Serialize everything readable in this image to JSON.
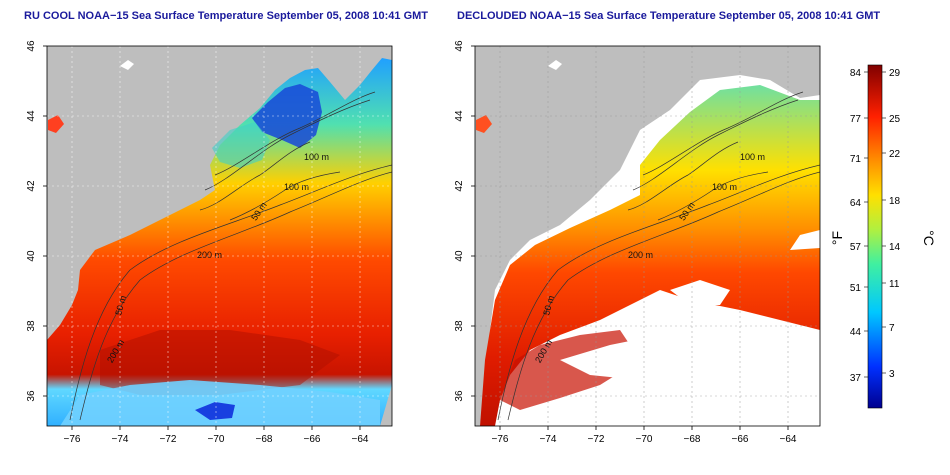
{
  "panels": [
    {
      "title": "RU COOL NOAA−15 Sea Surface Temperature September 05, 2008 10:41 GMT",
      "lat_ticks": [
        "46",
        "44",
        "42",
        "40",
        "38",
        "36"
      ],
      "lon_ticks": [
        "−76",
        "−74",
        "−72",
        "−70",
        "−68",
        "−66",
        "−64"
      ],
      "contour_labels": [
        "100 m",
        "100 m",
        "50 m",
        "200 m",
        "50 m",
        "200 m"
      ]
    },
    {
      "title": "DECLOUDED NOAA−15 Sea Surface Temperature September 05, 2008 10:41 GMT",
      "lat_ticks": [
        "46",
        "44",
        "42",
        "40",
        "38",
        "36"
      ],
      "lon_ticks": [
        "−76",
        "−74",
        "−72",
        "−70",
        "−68",
        "−66",
        "−64"
      ],
      "contour_labels": [
        "100 m",
        "100 m",
        "50 m",
        "200 m",
        "50 m",
        "200 m"
      ]
    }
  ],
  "colorbar": {
    "f_label": "°F",
    "c_label": "°C",
    "f_ticks": [
      "84",
      "77",
      "71",
      "64",
      "57",
      "51",
      "44",
      "37"
    ],
    "c_ticks": [
      "29",
      "25",
      "22",
      "18",
      "14",
      "11",
      "7",
      "3"
    ]
  },
  "colors": {
    "land": "#bebebe",
    "cloud": "#ffffff",
    "title": "#1a1a9c",
    "warm": "#cc1a00",
    "cold": "#1030c8"
  }
}
